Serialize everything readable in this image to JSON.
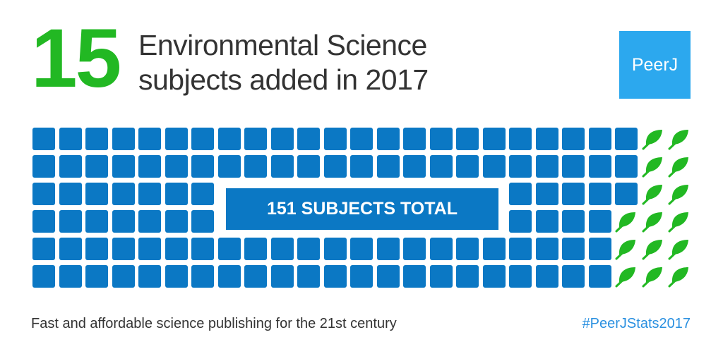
{
  "headline": {
    "number": "15",
    "line1": "Environmental Science",
    "line2": "subjects added in 2017"
  },
  "logo": {
    "text": "PeerJ",
    "color": "#2ca8ee"
  },
  "grid": {
    "total_label": "151 SUBJECTS TOTAL",
    "leaf_counts_per_row": [
      2,
      2,
      2,
      3,
      3,
      3
    ],
    "colors": {
      "subject": "#0b78c4",
      "leaf": "#22b823"
    },
    "icon": "leaf-icon"
  },
  "footer": {
    "tagline": "Fast and affordable science publishing for the 21st century",
    "hashtag": "#PeerJStats2017"
  }
}
